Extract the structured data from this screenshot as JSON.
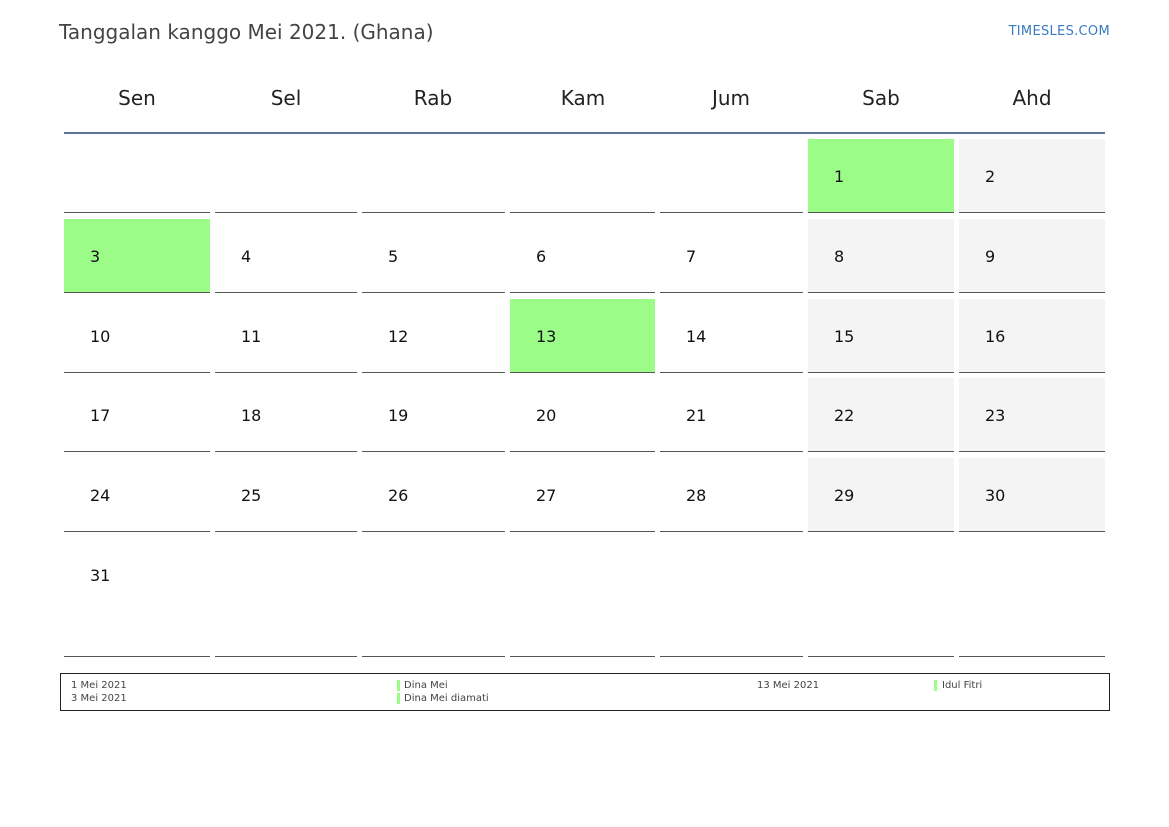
{
  "header": {
    "title": "Tanggalan kanggo Mei 2021. (Ghana)",
    "site": "TIMESLES.COM"
  },
  "weekdays": [
    "Sen",
    "Sel",
    "Rab",
    "Kam",
    "Jum",
    "Sab",
    "Ahd"
  ],
  "days": {
    "d1": "1",
    "d2": "2",
    "d3": "3",
    "d4": "4",
    "d5": "5",
    "d6": "6",
    "d7": "7",
    "d8": "8",
    "d9": "9",
    "d10": "10",
    "d11": "11",
    "d12": "12",
    "d13": "13",
    "d14": "14",
    "d15": "15",
    "d16": "16",
    "d17": "17",
    "d18": "18",
    "d19": "19",
    "d20": "20",
    "d21": "21",
    "d22": "22",
    "d23": "23",
    "d24": "24",
    "d25": "25",
    "d26": "26",
    "d27": "27",
    "d28": "28",
    "d29": "29",
    "d30": "30",
    "d31": "31"
  },
  "colors": {
    "holiday": "#9bfc87",
    "weekend": "#f4f4f4",
    "header_rule": "#5b7499",
    "link": "#3a7bbf"
  },
  "legend": [
    {
      "date": "1 Mei 2021",
      "name": "Dina Mei"
    },
    {
      "date": "3 Mei 2021",
      "name": "Dina Mei diamati"
    },
    {
      "date": "13 Mei 2021",
      "name": "Idul Fitri"
    }
  ]
}
